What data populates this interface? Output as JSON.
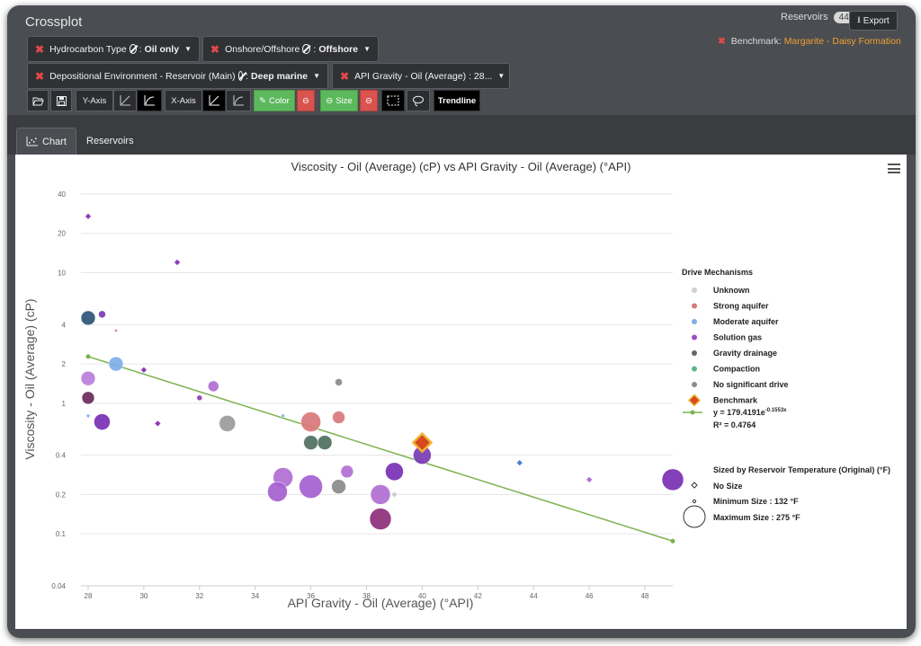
{
  "app": {
    "title": "Crossplot"
  },
  "header": {
    "reservoirs_label": "Reservoirs",
    "reservoirs_count": "44",
    "export_label": "Export",
    "benchmark_label": "Benchmark:",
    "benchmark_value": "Margarite - Daisy Formation"
  },
  "filters": [
    {
      "label": "Hydrocarbon Type",
      "value": "Oil only"
    },
    {
      "label": "Onshore/Offshore",
      "value": "Offshore"
    },
    {
      "label": "Depositional Environment - Reservoir (Main)",
      "value": "Deep marine"
    },
    {
      "label": "API Gravity - Oil (Average) : 28...",
      "value": ""
    }
  ],
  "toolbar": {
    "y_axis_label": "Y-Axis",
    "x_axis_label": "X-Axis",
    "color_label": "Color",
    "size_label": "Size",
    "trendline_label": "Trendline"
  },
  "tabs": [
    {
      "label": "Chart"
    },
    {
      "label": "Reservoirs"
    }
  ],
  "legend": {
    "title": "Drive Mechanisms",
    "items": [
      {
        "label": "Unknown",
        "color": "#cfcfcf"
      },
      {
        "label": "Strong aquifer",
        "color": "#d9777a"
      },
      {
        "label": "Moderate aquifer",
        "color": "#7faee8"
      },
      {
        "label": "Solution gas",
        "color": "#9b4fc7"
      },
      {
        "label": "Gravity drainage",
        "color": "#666666"
      },
      {
        "label": "Compaction",
        "color": "#5cb88a"
      },
      {
        "label": "No significant drive",
        "color": "#8a8a8a"
      },
      {
        "label": "Benchmark",
        "color": "#e2622a"
      }
    ],
    "trend_equation": "y = 179.4191e",
    "trend_exponent": "-0.1553x",
    "trend_r2": "R² = 0.4764",
    "size_title": "Sized by Reservoir Temperature (Original) (°F)",
    "size_items": [
      "No Size",
      "Minimum Size : 132 °F",
      "Maximum Size : 275 °F"
    ]
  },
  "chart_data": {
    "type": "scatter",
    "title": "Viscosity - Oil (Average) (cP) vs API Gravity - Oil (Average) (°API)",
    "xlabel": "API Gravity - Oil (Average) (°API)",
    "ylabel": "Viscosity - Oil (Average) (cP)",
    "xlim": [
      28,
      49
    ],
    "ylim": [
      0.04,
      40
    ],
    "y_scale": "log",
    "x_ticks": [
      "28",
      "30",
      "32",
      "34",
      "36",
      "38",
      "40",
      "42",
      "44",
      "46",
      "48"
    ],
    "y_ticks": [
      "0.04",
      "0.1",
      "0.2",
      "0.4",
      "1",
      "2",
      "4",
      "10",
      "20",
      "40"
    ],
    "grid": true,
    "trendline": {
      "x": [
        28,
        49
      ],
      "y": [
        2.28,
        0.088
      ]
    },
    "points": [
      {
        "x": 28.0,
        "y": 27.0,
        "size": 0,
        "group": "Solution gas",
        "color": "#8e3bb8",
        "shape": "diamond"
      },
      {
        "x": 31.2,
        "y": 12.0,
        "size": 0,
        "group": "Solution gas",
        "color": "#8e3bb8",
        "shape": "diamond"
      },
      {
        "x": 28.0,
        "y": 4.5,
        "size": 8,
        "group": "Gravity drainage",
        "color": "#2d5478"
      },
      {
        "x": 28.5,
        "y": 4.8,
        "size": 4,
        "group": "Solution gas",
        "color": "#7a3ab5"
      },
      {
        "x": 29.0,
        "y": 3.6,
        "size": 1,
        "group": "Strong aquifer",
        "color": "#d9777a"
      },
      {
        "x": 29.0,
        "y": 2.0,
        "size": 8,
        "group": "Moderate aquifer",
        "color": "#7faee8"
      },
      {
        "x": 30.0,
        "y": 1.8,
        "size": 0,
        "group": "Solution gas",
        "color": "#8e3bb8",
        "shape": "diamond"
      },
      {
        "x": 28.0,
        "y": 1.55,
        "size": 8,
        "group": "Solution gas",
        "color": "#b87fd9"
      },
      {
        "x": 28.0,
        "y": 1.1,
        "size": 7,
        "group": "Solution gas",
        "color": "#6a2a5a"
      },
      {
        "x": 28.0,
        "y": 0.8,
        "size": 2,
        "group": "Moderate aquifer",
        "color": "#7faee8"
      },
      {
        "x": 28.5,
        "y": 0.72,
        "size": 9,
        "group": "Solution gas",
        "color": "#7a2fb5"
      },
      {
        "x": 30.5,
        "y": 0.7,
        "size": 0,
        "group": "Solution gas",
        "color": "#8e3bb8",
        "shape": "diamond"
      },
      {
        "x": 32.0,
        "y": 1.1,
        "size": 3,
        "group": "Solution gas",
        "color": "#8e3bb8"
      },
      {
        "x": 32.5,
        "y": 1.35,
        "size": 6,
        "group": "Solution gas",
        "color": "#b06fd3"
      },
      {
        "x": 33.0,
        "y": 0.7,
        "size": 9,
        "group": "No significant drive",
        "color": "#9a9a9a"
      },
      {
        "x": 35.0,
        "y": 0.8,
        "size": 2,
        "group": "Moderate aquifer",
        "color": "#7faee8"
      },
      {
        "x": 36.0,
        "y": 0.72,
        "size": 11,
        "group": "Strong aquifer",
        "color": "#d9777a"
      },
      {
        "x": 37.0,
        "y": 0.78,
        "size": 7,
        "group": "Strong aquifer",
        "color": "#d9777a"
      },
      {
        "x": 37.0,
        "y": 1.45,
        "size": 4,
        "group": "No significant drive",
        "color": "#8a8a8a"
      },
      {
        "x": 36.0,
        "y": 0.5,
        "size": 8,
        "group": "Gravity drainage",
        "color": "#4f6f60"
      },
      {
        "x": 36.5,
        "y": 0.5,
        "size": 8,
        "group": "Gravity drainage",
        "color": "#4f6f60"
      },
      {
        "x": 35.0,
        "y": 0.27,
        "size": 11,
        "group": "Solution gas",
        "color": "#b06fd3"
      },
      {
        "x": 34.8,
        "y": 0.21,
        "size": 11,
        "group": "Solution gas",
        "color": "#a45fcf"
      },
      {
        "x": 36.0,
        "y": 0.23,
        "size": 13,
        "group": "Solution gas",
        "color": "#a45fcf"
      },
      {
        "x": 37.0,
        "y": 0.23,
        "size": 8,
        "group": "No significant drive",
        "color": "#8a8a8a"
      },
      {
        "x": 37.3,
        "y": 0.3,
        "size": 7,
        "group": "Solution gas",
        "color": "#b06fd3"
      },
      {
        "x": 38.5,
        "y": 0.2,
        "size": 11,
        "group": "Solution gas",
        "color": "#b06fd3"
      },
      {
        "x": 38.5,
        "y": 0.13,
        "size": 12,
        "group": "Solution gas",
        "color": "#8e2f7a"
      },
      {
        "x": 39.0,
        "y": 0.3,
        "size": 10,
        "group": "Solution gas",
        "color": "#7a2fb5"
      },
      {
        "x": 39.0,
        "y": 0.2,
        "size": 0,
        "group": "Unknown",
        "color": "#cfcfcf",
        "shape": "diamond"
      },
      {
        "x": 40.0,
        "y": 0.4,
        "size": 10,
        "group": "Solution gas",
        "color": "#7a3ab5"
      },
      {
        "x": 40.0,
        "y": 0.5,
        "size": 0,
        "group": "Benchmark",
        "color": "#e2622a",
        "shape": "benchmark"
      },
      {
        "x": 43.5,
        "y": 0.35,
        "size": 0,
        "group": "Moderate aquifer",
        "color": "#4a7fd6",
        "shape": "diamond"
      },
      {
        "x": 46.0,
        "y": 0.26,
        "size": 0,
        "group": "Solution gas",
        "color": "#b06fd3",
        "shape": "diamond"
      },
      {
        "x": 49.0,
        "y": 0.26,
        "size": 12,
        "group": "Solution gas",
        "color": "#7a2fb5"
      }
    ]
  }
}
